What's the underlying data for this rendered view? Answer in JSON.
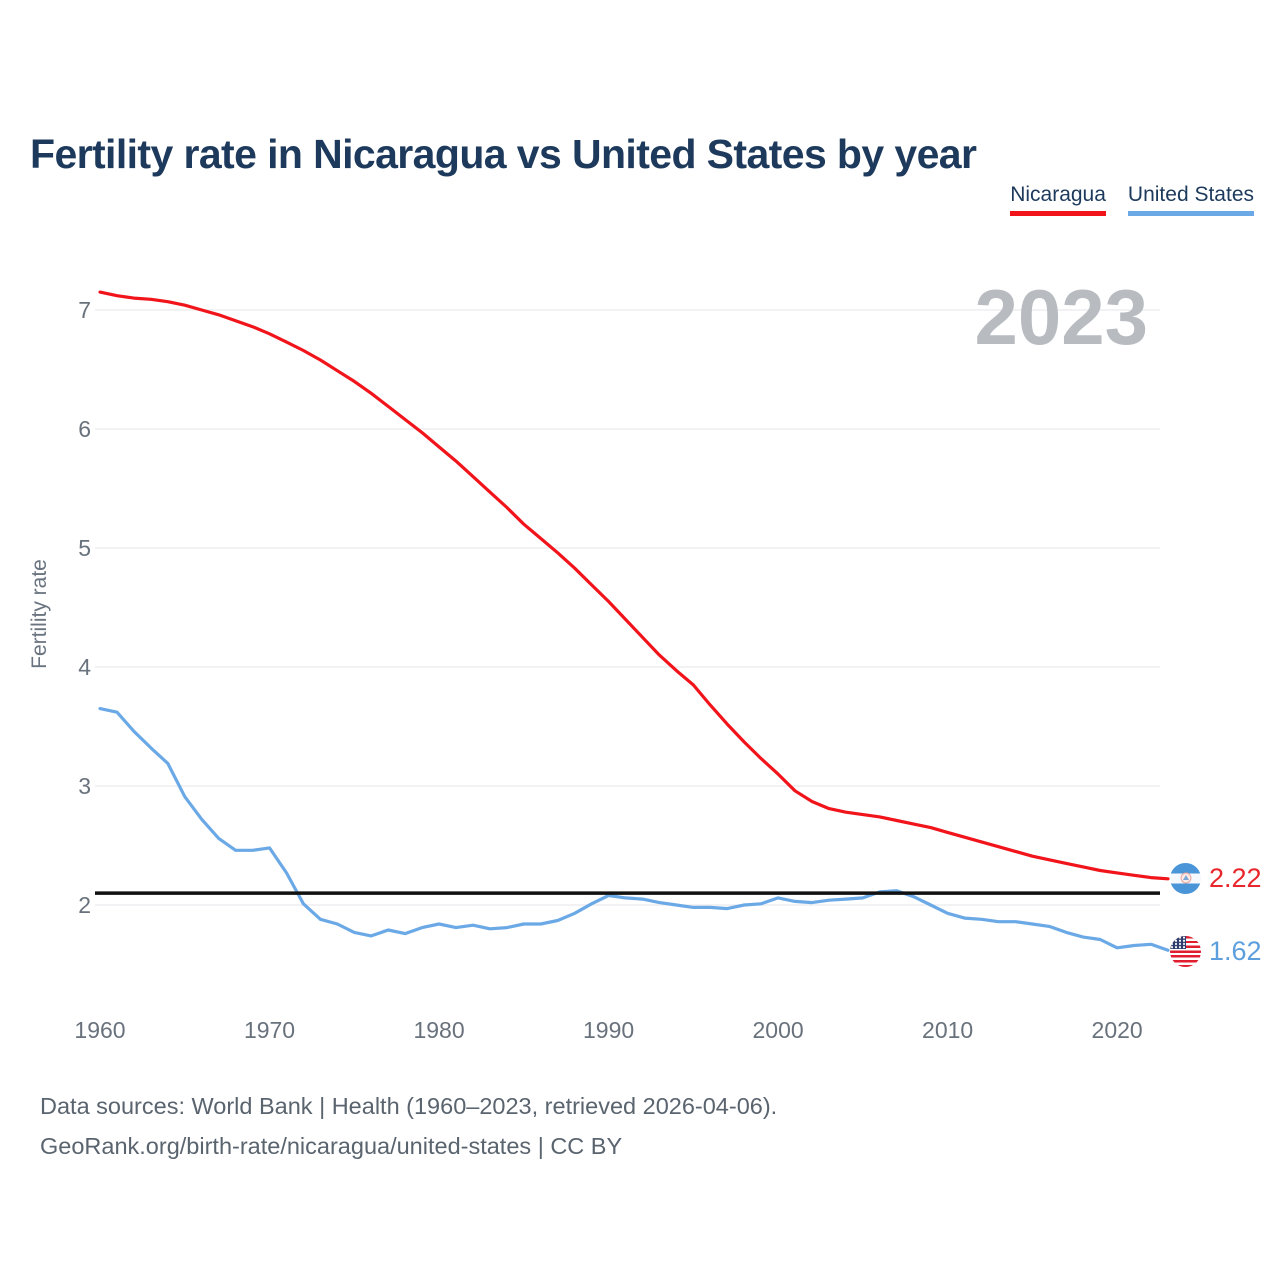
{
  "title": "Fertility rate in Nicaragua vs United States by year",
  "watermark": "2023",
  "legend": [
    {
      "label": "Nicaragua",
      "color": "#f1141b"
    },
    {
      "label": "United States",
      "color": "#6aa9e6"
    }
  ],
  "y_axis": {
    "label": "Fertility rate",
    "ticks": [
      2,
      3,
      4,
      5,
      6,
      7
    ]
  },
  "x_axis": {
    "ticks": [
      1960,
      1970,
      1980,
      1990,
      2000,
      2010,
      2020
    ]
  },
  "reference_line": {
    "value": 2.1,
    "color": "#111111"
  },
  "end_labels": [
    {
      "series": "Nicaragua",
      "value": "2.22",
      "color": "#e8262b",
      "flag": "nicaragua-flag"
    },
    {
      "series": "United States",
      "value": "1.62",
      "color": "#5d9fdd",
      "flag": "us-flag"
    }
  ],
  "footer": {
    "line1": "Data sources: World Bank | Health (1960–2023, retrieved 2026-04-06).",
    "line2": "GeoRank.org/birth-rate/nicaragua/united-states | CC BY"
  },
  "chart_data": {
    "type": "line",
    "title": "Fertility rate in Nicaragua vs United States by year",
    "xlabel": "",
    "ylabel": "Fertility rate",
    "xlim": [
      1960,
      2023
    ],
    "ylim": [
      1.5,
      7.3
    ],
    "grid": "horizontal",
    "legend_position": "top-right",
    "reference_line": 2.1,
    "xticks": [
      1960,
      1970,
      1980,
      1990,
      2000,
      2010,
      2020
    ],
    "yticks": [
      2,
      3,
      4,
      5,
      6,
      7
    ],
    "x": [
      1960,
      1961,
      1962,
      1963,
      1964,
      1965,
      1966,
      1967,
      1968,
      1969,
      1970,
      1971,
      1972,
      1973,
      1974,
      1975,
      1976,
      1977,
      1978,
      1979,
      1980,
      1981,
      1982,
      1983,
      1984,
      1985,
      1986,
      1987,
      1988,
      1989,
      1990,
      1991,
      1992,
      1993,
      1994,
      1995,
      1996,
      1997,
      1998,
      1999,
      2000,
      2001,
      2002,
      2003,
      2004,
      2005,
      2006,
      2007,
      2008,
      2009,
      2010,
      2011,
      2012,
      2013,
      2014,
      2015,
      2016,
      2017,
      2018,
      2019,
      2020,
      2021,
      2022,
      2023
    ],
    "series": [
      {
        "name": "Nicaragua",
        "color": "#f1141b",
        "end_label": "2.22",
        "values": [
          7.15,
          7.12,
          7.1,
          7.09,
          7.07,
          7.04,
          7.0,
          6.96,
          6.91,
          6.86,
          6.8,
          6.73,
          6.66,
          6.58,
          6.49,
          6.4,
          6.3,
          6.19,
          6.08,
          5.97,
          5.85,
          5.73,
          5.6,
          5.47,
          5.34,
          5.2,
          5.08,
          4.96,
          4.83,
          4.69,
          4.55,
          4.4,
          4.25,
          4.1,
          3.97,
          3.85,
          3.68,
          3.52,
          3.37,
          3.23,
          3.1,
          2.96,
          2.87,
          2.81,
          2.78,
          2.76,
          2.74,
          2.71,
          2.68,
          2.65,
          2.61,
          2.57,
          2.53,
          2.49,
          2.45,
          2.41,
          2.38,
          2.35,
          2.32,
          2.29,
          2.27,
          2.25,
          2.23,
          2.22
        ]
      },
      {
        "name": "United States",
        "color": "#6aa9e6",
        "end_label": "1.62",
        "values": [
          3.65,
          3.62,
          3.46,
          3.32,
          3.19,
          2.91,
          2.72,
          2.56,
          2.46,
          2.46,
          2.48,
          2.27,
          2.01,
          1.88,
          1.84,
          1.77,
          1.74,
          1.79,
          1.76,
          1.81,
          1.84,
          1.81,
          1.83,
          1.8,
          1.81,
          1.84,
          1.84,
          1.87,
          1.93,
          2.01,
          2.08,
          2.06,
          2.05,
          2.02,
          2.0,
          1.98,
          1.98,
          1.97,
          2.0,
          2.01,
          2.06,
          2.03,
          2.02,
          2.04,
          2.05,
          2.06,
          2.11,
          2.12,
          2.07,
          2.0,
          1.93,
          1.89,
          1.88,
          1.86,
          1.86,
          1.84,
          1.82,
          1.77,
          1.73,
          1.71,
          1.64,
          1.66,
          1.67,
          1.62
        ]
      }
    ]
  }
}
